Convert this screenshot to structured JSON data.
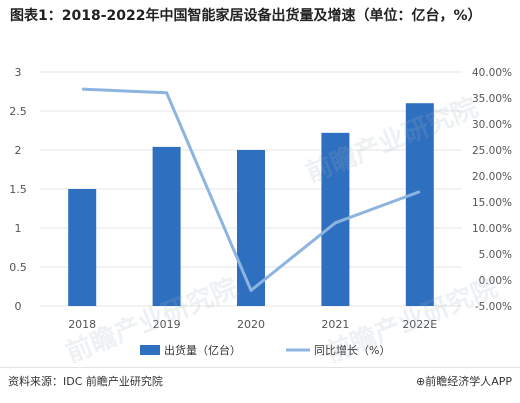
{
  "title": "图表1：2018-2022年中国智能家居设备出货量及增速（单位：亿台，%）",
  "source": "资料来源：IDC 前瞻产业研究院",
  "brand": "⊕前瞻经济学人APP",
  "watermark": "前瞻产业研究院",
  "colors": {
    "bar": "#2f6fbf",
    "line": "#8db4e0",
    "grid": "#e6e6e6",
    "axis_text": "#555555"
  },
  "chart_data": {
    "type": "bar",
    "categories": [
      "2018",
      "2019",
      "2020",
      "2021",
      "2022E"
    ],
    "series": [
      {
        "name": "出货量（亿台）",
        "type": "bar",
        "axis": "left",
        "values": [
          1.5,
          2.04,
          2.0,
          2.22,
          2.6
        ]
      },
      {
        "name": "同比增长（%）",
        "type": "line",
        "axis": "right",
        "values": [
          36.7,
          36.0,
          -2.0,
          11.0,
          17.0
        ]
      }
    ],
    "y_left": {
      "min": 0,
      "max": 3,
      "ticks": [
        "0",
        "0.5",
        "1",
        "1.5",
        "2",
        "2.5",
        "3"
      ]
    },
    "y_right": {
      "min": -5,
      "max": 40,
      "ticks": [
        "-5.00%",
        "0.00%",
        "5.00%",
        "10.00%",
        "15.00%",
        "20.00%",
        "25.00%",
        "30.00%",
        "35.00%",
        "40.00%"
      ]
    },
    "grid": true,
    "legend": "bottom"
  }
}
